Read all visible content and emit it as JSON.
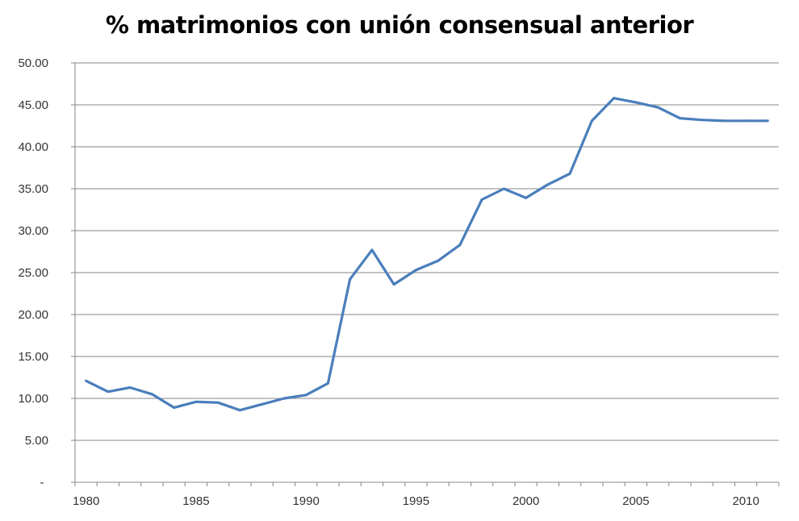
{
  "chart_data": {
    "type": "line",
    "title": "% matrimonios  con unión consensual anterior",
    "xlabel": "",
    "ylabel": "",
    "x": [
      1980,
      1981,
      1982,
      1983,
      1984,
      1985,
      1986,
      1987,
      1988,
      1989,
      1990,
      1991,
      1992,
      1993,
      1994,
      1995,
      1996,
      1997,
      1998,
      1999,
      2000,
      2001,
      2002,
      2003,
      2004,
      2005,
      2006,
      2007,
      2008,
      2009,
      2010,
      2011
    ],
    "series": [
      {
        "values": [
          12.1,
          10.8,
          11.3,
          10.5,
          8.9,
          9.6,
          9.5,
          8.6,
          9.3,
          10.0,
          10.4,
          11.8,
          24.2,
          27.7,
          23.6,
          25.3,
          26.4,
          28.3,
          33.7,
          35.0,
          33.9,
          35.5,
          36.8,
          43.1,
          45.8,
          45.3,
          44.7,
          43.4,
          43.2,
          43.1,
          43.1,
          43.1
        ],
        "color": "#4a7ebb"
      }
    ],
    "ylim": [
      0,
      50
    ],
    "yticks": [
      "-",
      "5.00",
      "10.00",
      "15.00",
      "20.00",
      "25.00",
      "30.00",
      "35.00",
      "40.00",
      "45.00",
      "50.00"
    ],
    "xtick_labels": [
      "1980",
      "1985",
      "1990",
      "1995",
      "2000",
      "2005",
      "2010"
    ],
    "grid": "horizontal",
    "legend": "none"
  }
}
